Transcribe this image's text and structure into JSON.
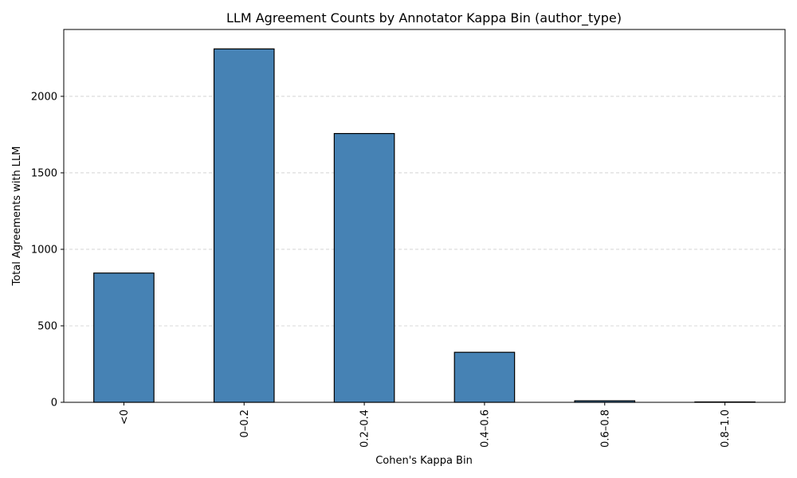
{
  "chart_data": {
    "type": "bar",
    "title": "LLM Agreement Counts by Annotator Kappa Bin (author_type)",
    "xlabel": "Cohen's Kappa Bin",
    "ylabel": "Total Agreements with LLM",
    "categories": [
      "<0",
      "0–0.2",
      "0.2–0.4",
      "0.4–0.6",
      "0.6–0.8",
      "0.8–1.0"
    ],
    "values": [
      845,
      2310,
      1757,
      327,
      10,
      1
    ],
    "ylim": [
      0,
      2437
    ],
    "yticks": [
      0,
      500,
      1000,
      1500,
      2000
    ],
    "grid": "y-dashed",
    "legend": "none",
    "x_tick_rotation": 90,
    "colors": {
      "bar_fill": "#4682b4",
      "bar_edge": "#000000",
      "grid": "#cccccc",
      "axis": "#000000"
    }
  }
}
